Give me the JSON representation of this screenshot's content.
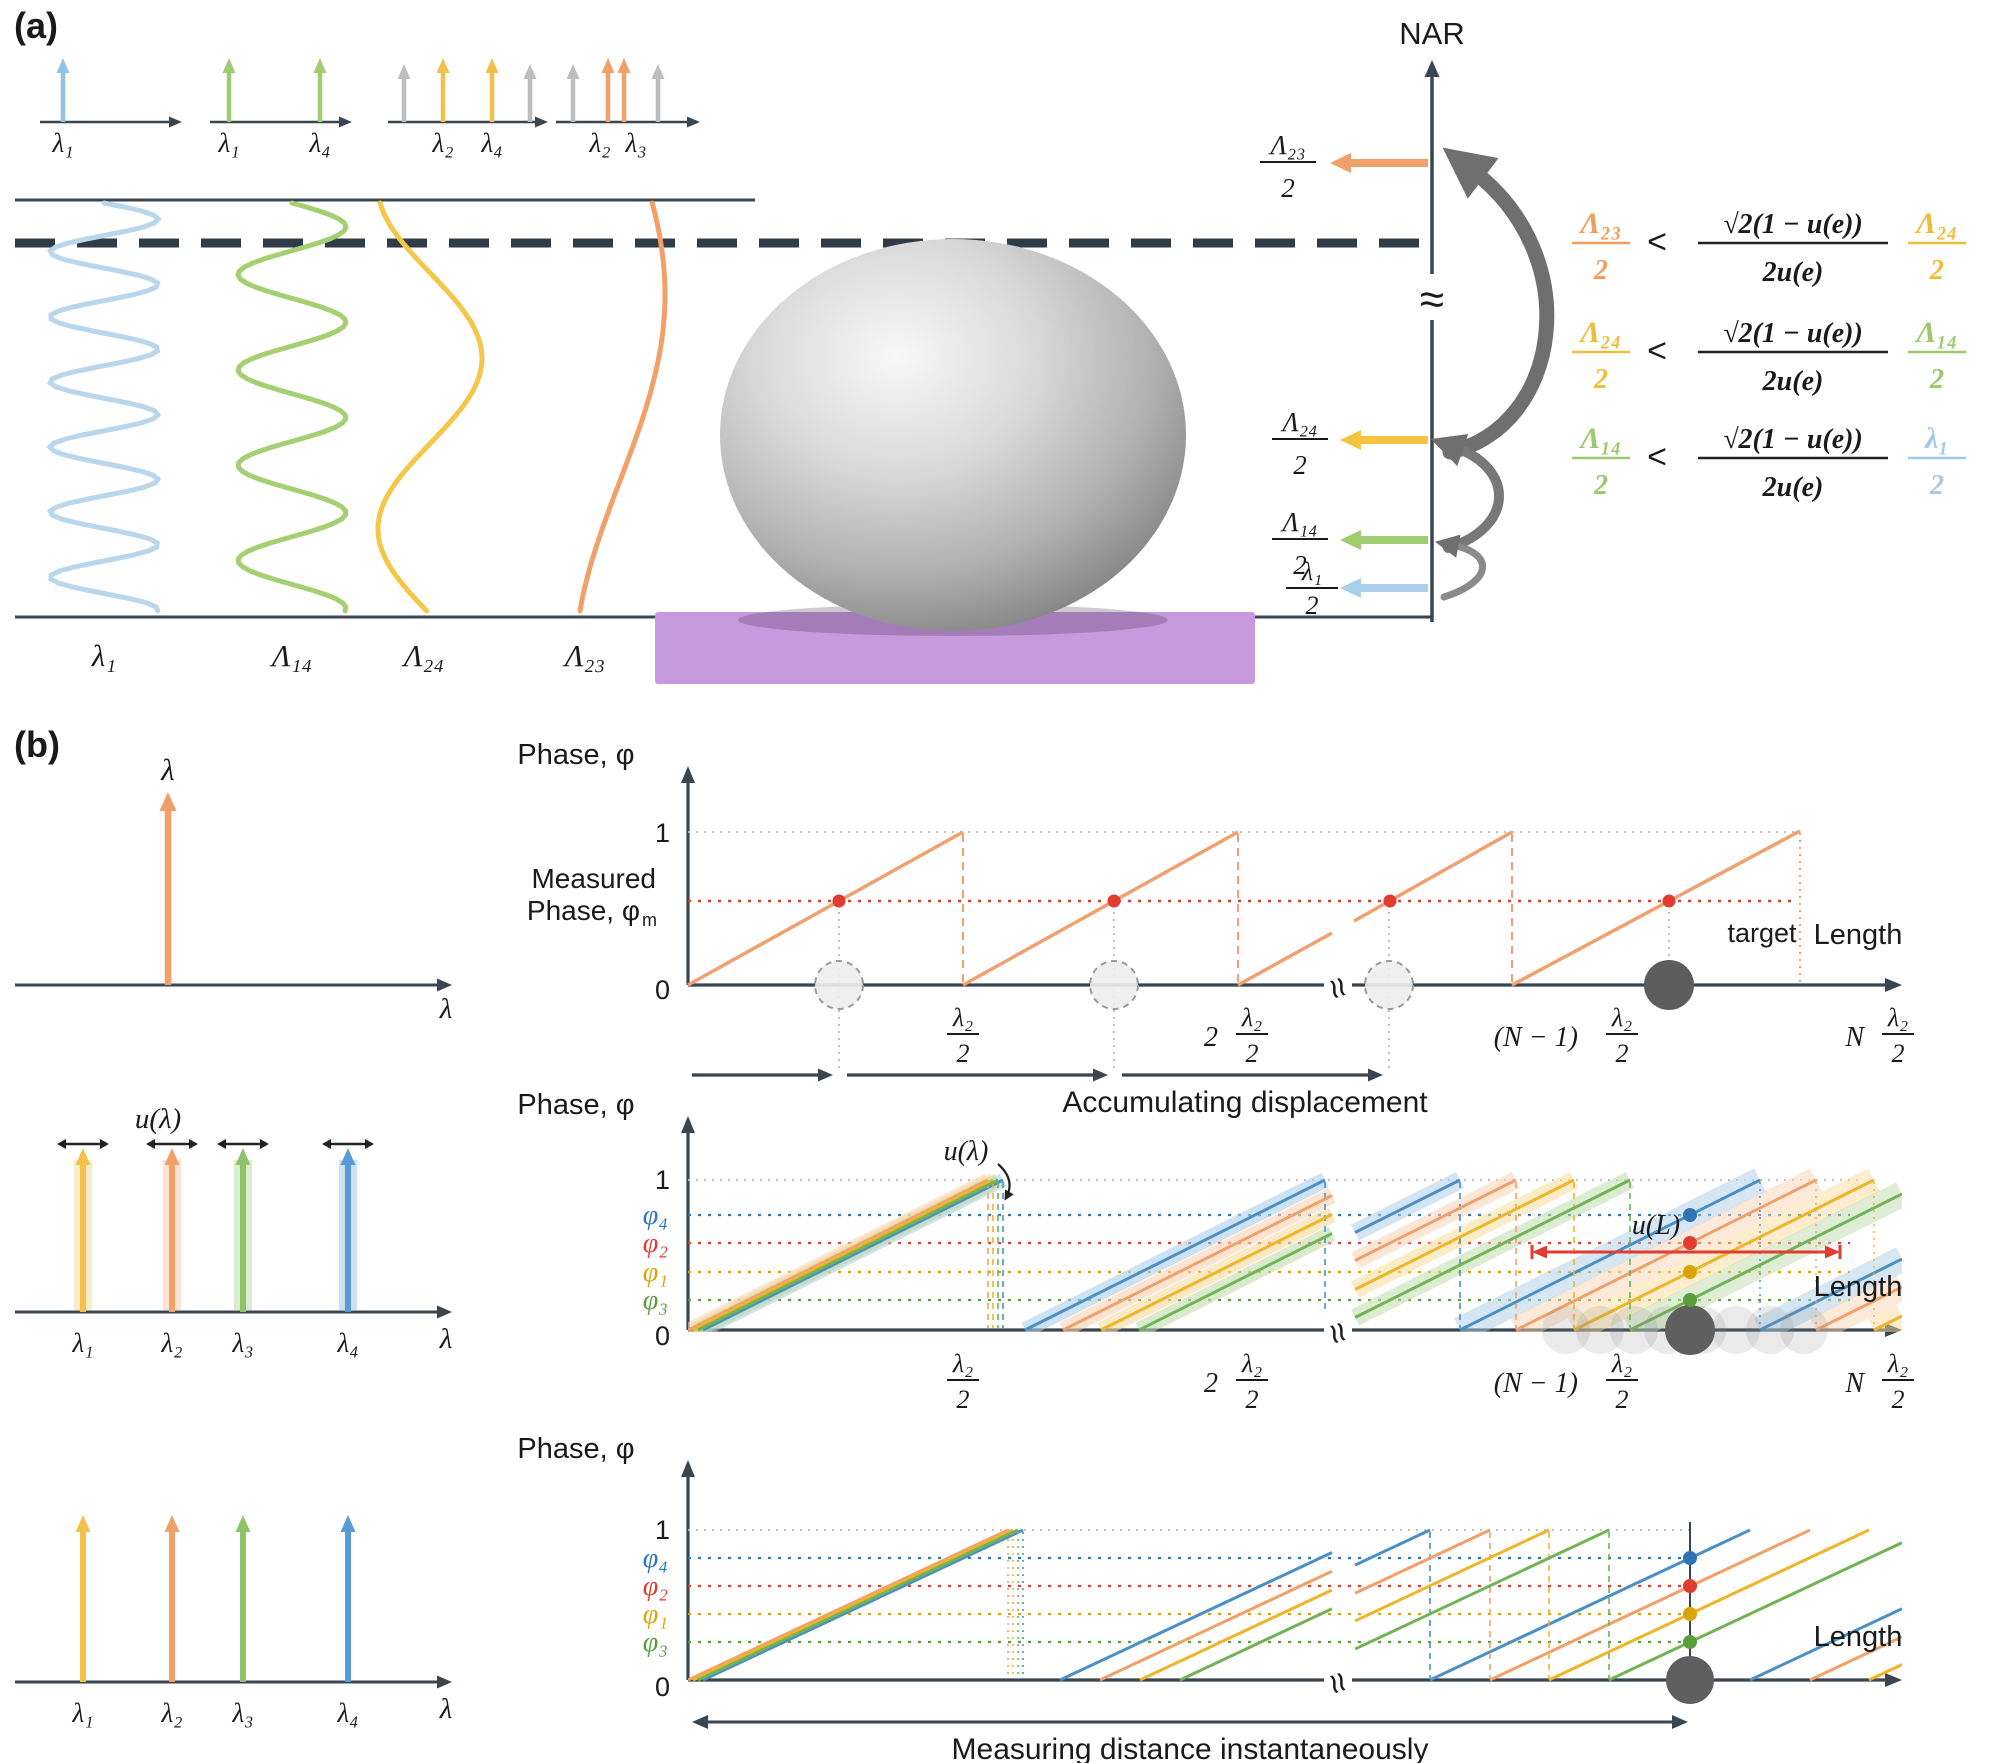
{
  "colors": {
    "dark": "#39454f",
    "light_blue": "#a9cfe8",
    "pale_blue_wave": "#b9d6ec",
    "blue_arrow": "#8fc3e8",
    "blue": "#4a90c4",
    "blue_dark": "#2e75b6",
    "blue_soft": "#5b9bd5",
    "green": "#9fcc6e",
    "green_pale": "#a6cf74",
    "green_line": "#71b356",
    "green_dark": "#5a9e3c",
    "green_arrow": "#8fc36a",
    "yellow": "#f5c542",
    "yellow_wave": "#f4c74a",
    "yellow_line": "#f0b429",
    "yellow_dark": "#d9a40a",
    "yellow_arrow": "#f3c14b",
    "orange": "#f2a069",
    "orange_saw": "#f0a071",
    "red": "#e03c31",
    "gray": "#8c8c8c",
    "gray_arrow": "#6f6f6f",
    "silver": "#bdbdbd",
    "purple": "#c79ade",
    "formula_orange": "#f09e5e",
    "formula_yellow": "#edbe3a",
    "formula_green": "#9cc86e",
    "formula_blue": "#a4c9e6"
  },
  "panel_a": {
    "tag": "(a)",
    "spectra": {
      "g1": [
        "λ₁"
      ],
      "g2": [
        "λ₁",
        "λ₄"
      ],
      "g3": [
        "λ₂",
        "λ₄"
      ],
      "g4": [
        "λ₂",
        "λ₃"
      ]
    },
    "waves": [
      "λ₁",
      "Λ₁₄",
      "Λ₂₄",
      "Λ₂₃"
    ],
    "nar": "NAR",
    "axis_break": "≈",
    "fracs": [
      {
        "t": "Λ₂₃",
        "b": "2"
      },
      {
        "t": "Λ₂₄",
        "b": "2"
      },
      {
        "t": "Λ₁₄",
        "b": "2"
      },
      {
        "t": "λ₁",
        "b": "2"
      }
    ],
    "formulas": [
      {
        "lt": "Λ₂₃",
        "lb": "2",
        "rel": "<",
        "mt": "√2(1 − u(e))",
        "mb": "2u(e)",
        "rt": "Λ₂₄",
        "rb": "2"
      },
      {
        "lt": "Λ₂₄",
        "lb": "2",
        "rel": "<",
        "mt": "√2(1 − u(e))",
        "mb": "2u(e)",
        "rt": "Λ₁₄",
        "rb": "2"
      },
      {
        "lt": "Λ₁₄",
        "lb": "2",
        "rel": "<",
        "mt": "√2(1 − u(e))",
        "mb": "2u(e)",
        "rt": "λ₁",
        "rb": "2"
      }
    ]
  },
  "panel_b": {
    "tag": "(b)",
    "spec1": {
      "peak": "λ",
      "axis": "λ"
    },
    "spec2": {
      "u": "u(λ)",
      "peaks": [
        "λ₁",
        "λ₂",
        "λ₃",
        "λ₄"
      ],
      "axis": "λ"
    },
    "spec3": {
      "peaks": [
        "λ₁",
        "λ₂",
        "λ₃",
        "λ₄"
      ],
      "axis": "λ"
    },
    "plot1": {
      "ylabel": "Phase, φ",
      "one": "1",
      "measured1": "Measured",
      "measured2a": "Phase, φ",
      "measured2b": "m",
      "zero": "0",
      "xlabel": "Length",
      "target": "target",
      "brk": "≈",
      "p2": "2",
      "p3": "(N − 1)",
      "p4": "N",
      "ft": "λ₂",
      "fb": "2",
      "caption": "Accumulating displacement"
    },
    "plot2": {
      "ylabel": "Phase, φ",
      "one": "1",
      "zero": "0",
      "phi": [
        "φ₄",
        "φ₂",
        "φ₁",
        "φ₃"
      ],
      "ulam": "u(λ)",
      "uL": "u(L)",
      "xlabel": "Length",
      "brk": "≈",
      "p2": "2",
      "p3": "(N − 1)",
      "p4": "N",
      "ft": "λ₂",
      "fb": "2"
    },
    "plot3": {
      "ylabel": "Phase, φ",
      "one": "1",
      "zero": "0",
      "phi": [
        "φ₄",
        "φ₂",
        "φ₁",
        "φ₃"
      ],
      "xlabel": "Length",
      "brk": "≈",
      "caption": "Measuring distance instantaneously"
    }
  }
}
